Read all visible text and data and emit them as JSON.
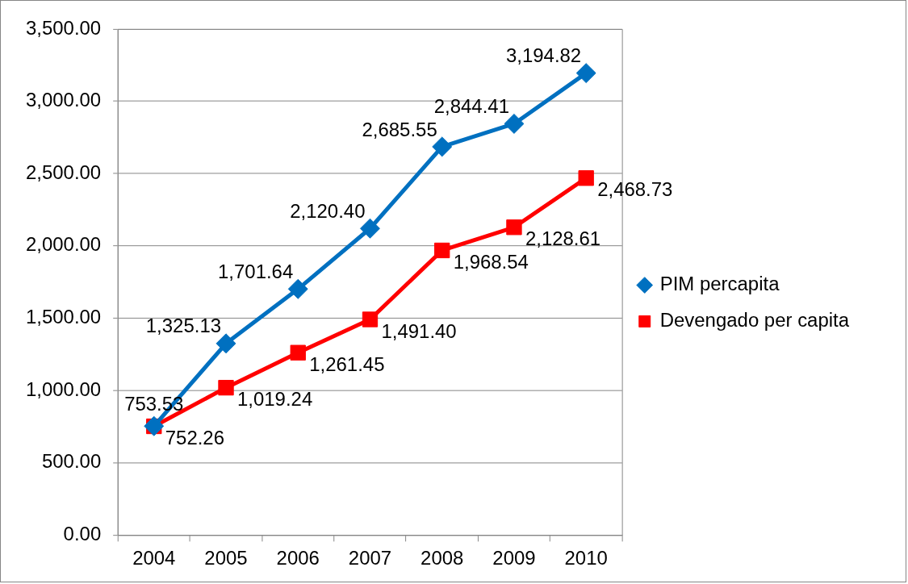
{
  "chart_data": {
    "type": "line",
    "categories": [
      "2004",
      "2005",
      "2006",
      "2007",
      "2008",
      "2009",
      "2010"
    ],
    "series": [
      {
        "name": "PIM percapita",
        "color": "#0070c0",
        "marker": "diamond",
        "values": [
          753.53,
          1325.13,
          1701.64,
          2120.4,
          2685.55,
          2844.41,
          3194.82
        ],
        "value_labels": [
          "753.53",
          "1,325.13",
          "1,701.64",
          "2,120.40",
          "2,685.55",
          "2,844.41",
          "3,194.82"
        ]
      },
      {
        "name": "Devengado per capita",
        "color": "#ff0000",
        "marker": "square",
        "values": [
          752.26,
          1019.24,
          1261.45,
          1491.4,
          1968.54,
          2128.61,
          2468.73
        ],
        "value_labels": [
          "752.26",
          "1,019.24",
          "1,261.45",
          "1,491.40",
          "1,968.54",
          "2,128.61",
          "2,468.73"
        ]
      }
    ],
    "ylim": [
      0,
      3500
    ],
    "yticks": [
      {
        "value": 0,
        "label": "0.00"
      },
      {
        "value": 500,
        "label": "500.00"
      },
      {
        "value": 1000,
        "label": "1,000.00"
      },
      {
        "value": 1500,
        "label": "1,500.00"
      },
      {
        "value": 2000,
        "label": "2,000.00"
      },
      {
        "value": 2500,
        "label": "2,500.00"
      },
      {
        "value": 3000,
        "label": "3,000.00"
      },
      {
        "value": 3500,
        "label": "3,500.00"
      }
    ],
    "grid": "y",
    "legend": "right"
  }
}
